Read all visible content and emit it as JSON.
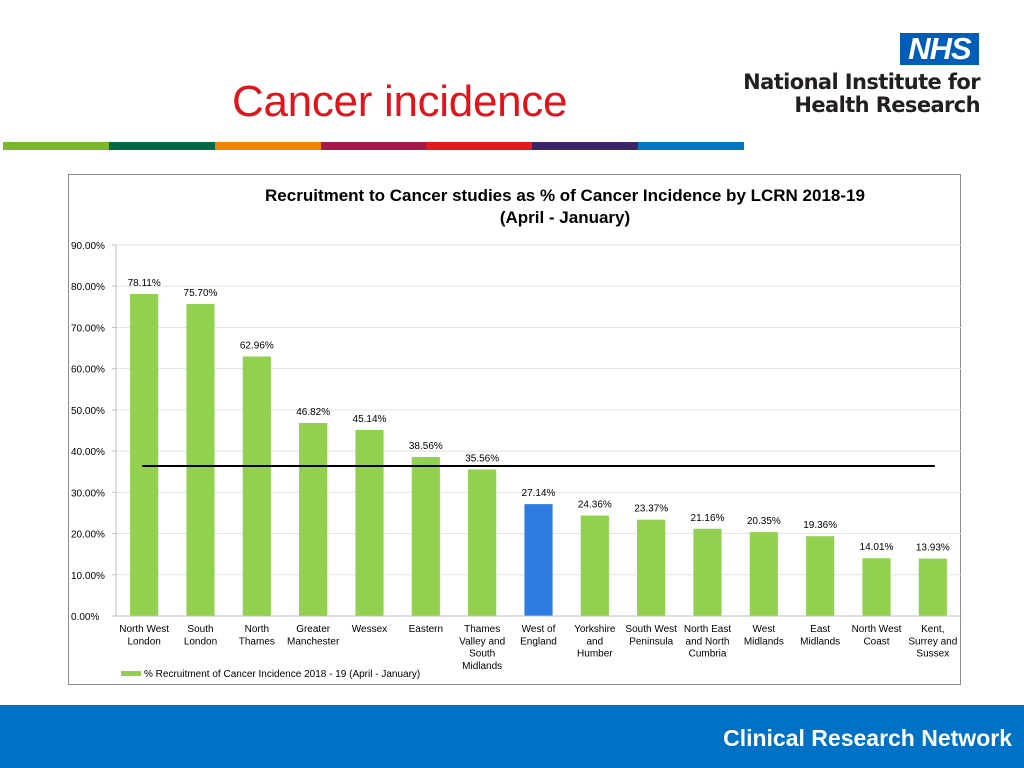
{
  "slide": {
    "title": "Cancer incidence",
    "colour_bar": [
      "#78b82a",
      "#006747",
      "#f18400",
      "#a6194b",
      "#e2191e",
      "#3b2566",
      "#0077c0"
    ]
  },
  "logo": {
    "nhs": "NHS",
    "line1": "National Institute for",
    "line2": "Health Research",
    "nhs_color": "#005eb8"
  },
  "footer": {
    "text": "Clinical Research Network",
    "color": "#0072c6"
  },
  "chart_data": {
    "type": "bar",
    "title": "Recruitment to Cancer studies as % of Cancer Incidence by LCRN 2018-19",
    "subtitle": "(April - January)",
    "xlabel": "",
    "ylabel": "",
    "ylim": [
      0,
      90
    ],
    "yticks": [
      0,
      10,
      20,
      30,
      40,
      50,
      60,
      70,
      80,
      90
    ],
    "ytick_labels": [
      "0.00%",
      "10.00%",
      "20.00%",
      "30.00%",
      "40.00%",
      "50.00%",
      "60.00%",
      "70.00%",
      "80.00%",
      "90.00%"
    ],
    "grid": true,
    "categories": [
      [
        "North West",
        "London"
      ],
      [
        "South",
        "London"
      ],
      [
        "North",
        "Thames"
      ],
      [
        "Greater",
        "Manchester"
      ],
      [
        "Wessex"
      ],
      [
        "Eastern"
      ],
      [
        "Thames",
        "Valley and",
        "South",
        "Midlands"
      ],
      [
        "West of",
        "England"
      ],
      [
        "Yorkshire",
        "and",
        "Humber"
      ],
      [
        "South West",
        "Peninsula"
      ],
      [
        "North East",
        "and North",
        "Cumbria"
      ],
      [
        "West",
        "Midlands"
      ],
      [
        "East",
        "Midlands"
      ],
      [
        "North West",
        "Coast"
      ],
      [
        "Kent,",
        "Surrey and",
        "Sussex"
      ]
    ],
    "series": [
      {
        "name": "% Recruitment of Cancer Incidence 2018 - 19 (April - January)",
        "values": [
          78.11,
          75.7,
          62.96,
          46.82,
          45.14,
          38.56,
          35.56,
          27.14,
          24.36,
          23.37,
          21.16,
          20.35,
          19.36,
          14.01,
          13.93
        ],
        "data_labels": [
          "78.11%",
          "75.70%",
          "62.96%",
          "46.82%",
          "45.14%",
          "38.56%",
          "35.56%",
          "27.14%",
          "24.36%",
          "23.37%",
          "21.16%",
          "20.35%",
          "19.36%",
          "14.01%",
          "13.93%"
        ],
        "color": "#92d050",
        "highlight_index": 7,
        "highlight_color": "#2f7de1"
      }
    ],
    "reference_line": {
      "value": 36.4,
      "color": "#000000"
    },
    "legend": {
      "position": "bottom-left",
      "entries": [
        "% Recruitment of Cancer Incidence 2018 - 19 (April - January)"
      ]
    }
  }
}
